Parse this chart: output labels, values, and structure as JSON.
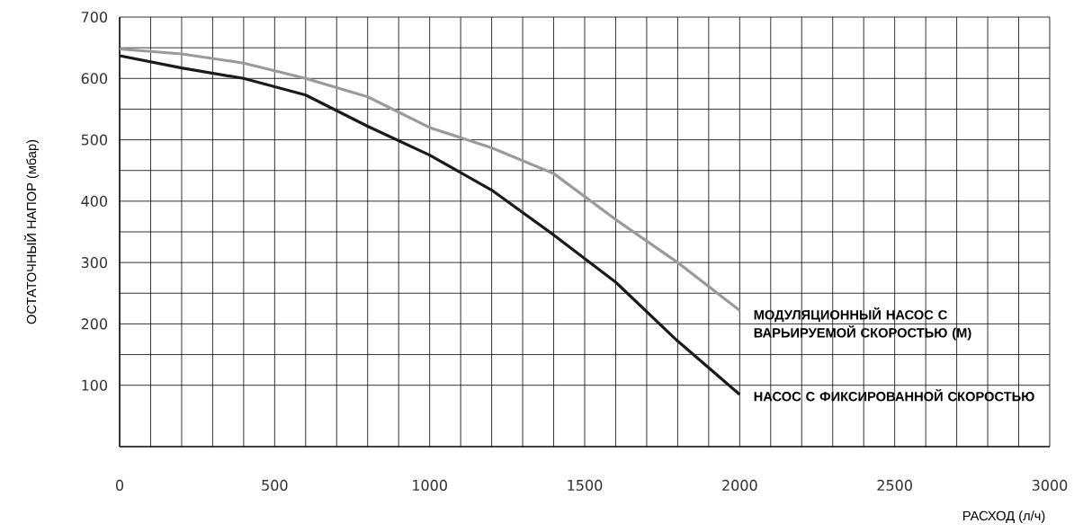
{
  "chart_data": {
    "type": "line",
    "xlabel": "РАСХОД (л/ч)",
    "ylabel": "ОСТАТОЧНЫЙ НАПОР (мбар)",
    "x": [
      0,
      200,
      400,
      600,
      800,
      1000,
      1200,
      1400,
      1600,
      1800,
      2000
    ],
    "series": [
      {
        "name": "МОДУЛЯЦИОННЫЙ НАСОС С ВАРЬИРУЕМОЙ СКОРОСТЬЮ (М)",
        "color": "#9a9a9a",
        "values": [
          648,
          640,
          625,
          600,
          570,
          520,
          487,
          445,
          370,
          300,
          222
        ]
      },
      {
        "name": "НАСОС С ФИКСИРОВАННОЙ СКОРОСТЬЮ",
        "color": "#1a1a1a",
        "values": [
          637,
          617,
          600,
          573,
          522,
          475,
          418,
          345,
          268,
          172,
          85
        ]
      }
    ],
    "xlim": [
      0,
      3000
    ],
    "ylim": [
      0,
      700
    ],
    "xticks": [
      0,
      500,
      1000,
      1500,
      2000,
      2500,
      3000
    ],
    "yticks": [
      100,
      200,
      300,
      400,
      500,
      600,
      700
    ],
    "grid": true,
    "legend": false,
    "marker": "none",
    "line_style": "solid"
  }
}
